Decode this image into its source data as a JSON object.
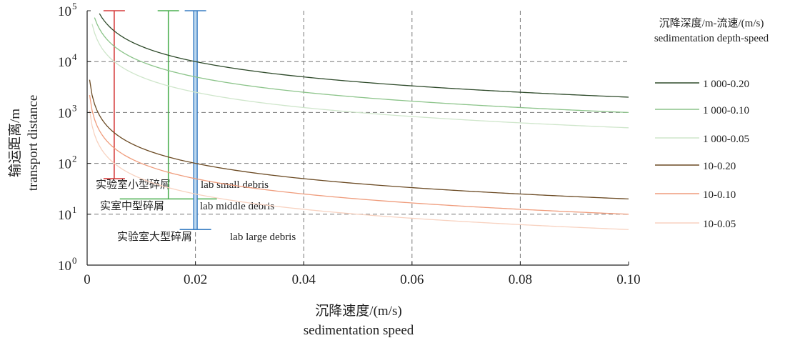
{
  "chart_data": {
    "type": "line",
    "title": "",
    "xlabel": "沉降速度/(m/s)",
    "xlabel_en": "sedimentation speed",
    "ylabel": "输运距离/m",
    "ylabel_en": "transport distance",
    "x_scale": "linear",
    "y_scale": "log",
    "xlim": [
      0,
      0.1
    ],
    "ylim": [
      1,
      100000
    ],
    "x_ticks": [
      0,
      0.02,
      0.04,
      0.06,
      0.08,
      0.1
    ],
    "x_tick_labels": [
      "0",
      "0.02",
      "0.04",
      "0.06",
      "0.08",
      "0.10"
    ],
    "y_ticks": [
      1,
      10,
      100,
      1000,
      10000,
      100000
    ],
    "y_tick_base": "10",
    "y_tick_exponents": [
      "0",
      "1",
      "2",
      "3",
      "4",
      "5"
    ],
    "grid": "dashed",
    "legend": {
      "title": "沉降深度/m-流速/(m/s)",
      "title_en": "sedimentation depth-speed",
      "placement": "right"
    },
    "series": [
      {
        "name": "1 000-0.20",
        "color": "#2e4a2a",
        "depth": 1000,
        "speed": 0.2
      },
      {
        "name": "1 000-0.10",
        "color": "#8cc48a",
        "depth": 1000,
        "speed": 0.1
      },
      {
        "name": "1 000-0.05",
        "color": "#cfe6cb",
        "depth": 1000,
        "speed": 0.05
      },
      {
        "name": "10-0.20",
        "color": "#6b4a23",
        "depth": 10,
        "speed": 0.2
      },
      {
        "name": "10-0.10",
        "color": "#ef9c7c",
        "depth": 10,
        "speed": 0.1
      },
      {
        "name": "10-0.05",
        "color": "#f8d2c0",
        "depth": 10,
        "speed": 0.05
      }
    ],
    "annotations": [
      {
        "label": "实验室小型碎屑",
        "label_en": "lab small  debris",
        "x": 0.005,
        "y_min": 50,
        "y_max": 100000,
        "color": "#d63b3b"
      },
      {
        "label": "实室中型碎屑",
        "label_en": "lab middle debris",
        "x": 0.015,
        "y_min": 20,
        "y_max": 100000,
        "color": "#4caf50"
      },
      {
        "label": "实验室大型碎屑",
        "label_en": "lab large debris",
        "x": 0.02,
        "y_min": 5,
        "y_max": 100000,
        "color": "#3a7fc4"
      }
    ]
  }
}
